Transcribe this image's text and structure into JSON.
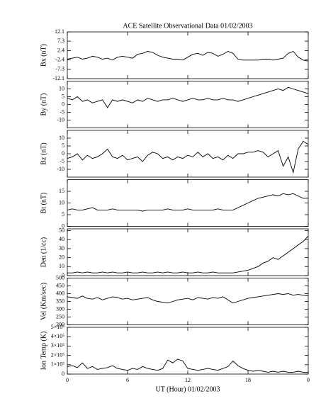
{
  "chart_data": [
    {
      "type": "line",
      "title": "ACE Satellite Observational Data   01/02/2003",
      "ylabel": "Bx (nT)",
      "color": "#000000",
      "x": [
        0,
        0.5,
        1,
        1.5,
        2,
        2.5,
        3,
        3.5,
        4,
        4.5,
        5,
        5.5,
        6,
        6.5,
        7,
        7.5,
        8,
        8.5,
        9,
        9.5,
        10,
        10.5,
        11,
        11.5,
        12,
        12.5,
        13,
        13.5,
        14,
        14.5,
        15,
        15.5,
        16,
        16.5,
        17,
        17.5,
        18,
        18.5,
        19,
        19.5,
        20,
        20.5,
        21,
        21.5,
        22,
        22.5,
        23,
        23.5,
        24
      ],
      "values": [
        -2,
        -1.5,
        -1,
        -2,
        -1.5,
        -0.5,
        -1,
        -2,
        -1.5,
        -2.5,
        -1,
        -0.5,
        -1,
        -1.5,
        0.5,
        1,
        2,
        1.5,
        0,
        -1,
        -1.5,
        -2,
        -2,
        -2.5,
        -1,
        0.5,
        1,
        0,
        1.5,
        1,
        -0.5,
        0.5,
        2,
        1,
        -2,
        -2.5,
        -2.5,
        -2.5,
        -2.5,
        -2,
        -2,
        -2.5,
        -2,
        -1.5,
        1,
        2,
        -1,
        -2.5,
        -3
      ],
      "ylim": [
        -12.1,
        12.1
      ],
      "yticks": [
        12.1,
        7.3,
        2.4,
        -2.4,
        -7.3,
        -12.1
      ]
    },
    {
      "type": "line",
      "ylabel": "By (nT)",
      "color": "#000000",
      "x": [
        0,
        0.5,
        1,
        1.5,
        2,
        2.5,
        3,
        3.5,
        4,
        4.5,
        5,
        5.5,
        6,
        6.5,
        7,
        7.5,
        8,
        8.5,
        9,
        9.5,
        10,
        10.5,
        11,
        11.5,
        12,
        12.5,
        13,
        13.5,
        14,
        14.5,
        15,
        15.5,
        16,
        16.5,
        17,
        17.5,
        18,
        18.5,
        19,
        19.5,
        20,
        20.5,
        21,
        21.5,
        22,
        22.5,
        23,
        23.5,
        24
      ],
      "values": [
        4,
        3,
        5,
        2,
        3,
        1,
        2,
        3,
        -2,
        3,
        2,
        3,
        2,
        1,
        3,
        2,
        4,
        3,
        2,
        3,
        3,
        4,
        3,
        2,
        3,
        4,
        3,
        3,
        4,
        3,
        3,
        4,
        3,
        3,
        2,
        3,
        4,
        5,
        6,
        7,
        8,
        9,
        10,
        9,
        11,
        10,
        9,
        8,
        7
      ],
      "ylim": [
        -15,
        15
      ],
      "yticks": [
        10,
        5,
        0,
        -5,
        -10
      ]
    },
    {
      "type": "line",
      "ylabel": "Bz (nT)",
      "color": "#000000",
      "x": [
        0,
        0.5,
        1,
        1.5,
        2,
        2.5,
        3,
        3.5,
        4,
        4.5,
        5,
        5.5,
        6,
        6.5,
        7,
        7.5,
        8,
        8.5,
        9,
        9.5,
        10,
        10.5,
        11,
        11.5,
        12,
        12.5,
        13,
        13.5,
        14,
        14.5,
        15,
        15.5,
        16,
        16.5,
        17,
        17.5,
        18,
        18.5,
        19,
        19.5,
        20,
        20.5,
        21,
        21.5,
        22,
        22.5,
        23,
        23.5,
        24
      ],
      "values": [
        -3,
        -2,
        0,
        -4,
        -1,
        -3,
        -2,
        0,
        3,
        -2,
        -3,
        -1,
        -4,
        -3,
        -2,
        -5,
        -1,
        1,
        0,
        -3,
        -2,
        -4,
        -2,
        -3,
        -1,
        -2,
        1,
        -2,
        0,
        -3,
        -2,
        -4,
        -1,
        -3,
        0,
        0,
        1,
        1,
        2,
        1,
        -2,
        0,
        2,
        -8,
        -2,
        -12,
        3,
        8,
        6
      ],
      "ylim": [
        -15,
        15
      ],
      "yticks": [
        10,
        5,
        0,
        -5,
        -10
      ]
    },
    {
      "type": "line",
      "ylabel": "Bt (nT)",
      "color": "#000000",
      "x": [
        0,
        0.5,
        1,
        1.5,
        2,
        2.5,
        3,
        3.5,
        4,
        4.5,
        5,
        5.5,
        6,
        6.5,
        7,
        7.5,
        8,
        8.5,
        9,
        9.5,
        10,
        10.5,
        11,
        11.5,
        12,
        12.5,
        13,
        13.5,
        14,
        14.5,
        15,
        15.5,
        16,
        16.5,
        17,
        17.5,
        18,
        18.5,
        19,
        19.5,
        20,
        20.5,
        21,
        21.5,
        22,
        22.5,
        23,
        23.5,
        24
      ],
      "values": [
        7,
        7.5,
        7,
        7,
        7.5,
        8,
        7,
        7,
        7,
        7.5,
        7,
        7,
        7,
        7,
        7,
        6.5,
        7,
        7,
        7,
        7,
        7.5,
        7,
        7,
        7,
        7.5,
        7,
        7,
        7,
        7,
        7,
        7.5,
        7,
        7,
        7,
        8,
        9,
        10,
        11,
        12,
        12.5,
        13,
        13.5,
        13,
        14,
        13.5,
        14,
        13,
        12,
        12
      ],
      "ylim": [
        0,
        20
      ],
      "yticks": [
        0,
        5,
        10,
        15
      ]
    },
    {
      "type": "line",
      "ylabel": "Den (1/cc)",
      "color": "#000000",
      "x": [
        0,
        0.5,
        1,
        1.5,
        2,
        2.5,
        3,
        3.5,
        4,
        4.5,
        5,
        5.5,
        6,
        6.5,
        7,
        7.5,
        8,
        8.5,
        9,
        9.5,
        10,
        10.5,
        11,
        11.5,
        12,
        12.5,
        13,
        13.5,
        14,
        14.5,
        15,
        15.5,
        16,
        16.5,
        17,
        17.5,
        18,
        18.5,
        19,
        19.5,
        20,
        20.5,
        21,
        21.5,
        22,
        22.5,
        23,
        23.5,
        24
      ],
      "values": [
        3,
        3,
        4,
        3,
        4,
        3,
        3,
        4,
        3,
        4,
        3,
        3,
        4,
        3,
        3,
        4,
        3,
        3,
        4,
        3,
        4,
        3,
        3,
        4,
        3,
        3,
        4,
        3,
        3,
        4,
        3,
        3,
        3,
        3,
        4,
        5,
        6,
        8,
        10,
        14,
        16,
        20,
        18,
        22,
        26,
        30,
        34,
        38,
        44
      ],
      "ylim": [
        0,
        52
      ],
      "yticks": [
        0,
        10,
        20,
        30,
        40,
        50
      ]
    },
    {
      "type": "line",
      "ylabel": "Vel (Km/sec)",
      "color": "#000000",
      "x": [
        0,
        0.5,
        1,
        1.5,
        2,
        2.5,
        3,
        3.5,
        4,
        4.5,
        5,
        5.5,
        6,
        6.5,
        7,
        7.5,
        8,
        8.5,
        9,
        9.5,
        10,
        10.5,
        11,
        11.5,
        12,
        12.5,
        13,
        13.5,
        14,
        14.5,
        15,
        15.5,
        16,
        16.5,
        17,
        17.5,
        18,
        18.5,
        19,
        19.5,
        20,
        20.5,
        21,
        21.5,
        22,
        22.5,
        23,
        23.5,
        24
      ],
      "values": [
        380,
        375,
        370,
        385,
        370,
        365,
        375,
        360,
        370,
        380,
        375,
        365,
        370,
        360,
        365,
        370,
        375,
        360,
        350,
        345,
        340,
        350,
        360,
        365,
        370,
        360,
        375,
        370,
        365,
        375,
        370,
        380,
        360,
        340,
        350,
        360,
        370,
        375,
        380,
        385,
        390,
        395,
        400,
        395,
        400,
        390,
        395,
        390,
        385
      ],
      "ylim": [
        200,
        500
      ],
      "yticks": [
        200,
        250,
        300,
        350,
        400,
        450,
        500
      ]
    },
    {
      "type": "line",
      "ylabel": "Ion Temp (K)",
      "xlabel": "UT (Hour)   01/02/2003",
      "color": "#000000",
      "x": [
        0,
        0.5,
        1,
        1.5,
        2,
        2.5,
        3,
        3.5,
        4,
        4.5,
        5,
        5.5,
        6,
        6.5,
        7,
        7.5,
        8,
        8.5,
        9,
        9.5,
        10,
        10.5,
        11,
        11.5,
        12,
        12.5,
        13,
        13.5,
        14,
        14.5,
        15,
        15.5,
        16,
        16.5,
        17,
        17.5,
        18,
        18.5,
        19,
        19.5,
        20,
        20.5,
        21,
        21.5,
        22,
        22.5,
        23,
        23.5,
        24
      ],
      "values": [
        80000,
        90000,
        70000,
        120000,
        60000,
        80000,
        50000,
        60000,
        70000,
        90000,
        60000,
        50000,
        40000,
        60000,
        50000,
        80000,
        60000,
        50000,
        40000,
        60000,
        150000,
        120000,
        160000,
        140000,
        60000,
        50000,
        40000,
        50000,
        60000,
        50000,
        40000,
        60000,
        80000,
        140000,
        90000,
        60000,
        40000,
        30000,
        40000,
        30000,
        20000,
        30000,
        20000,
        30000,
        20000,
        20000,
        30000,
        20000,
        20000
      ],
      "ylim": [
        0,
        500000
      ],
      "yticks": [
        0,
        {
          "value": 100000,
          "label": "1×10⁵"
        },
        {
          "value": 200000,
          "label": "2×10⁵"
        },
        {
          "value": 300000,
          "label": "3×10⁵"
        },
        {
          "value": 400000,
          "label": "4×10⁵"
        },
        {
          "value": 500000,
          "label": "5×10⁵"
        }
      ],
      "xlim": [
        0,
        24
      ],
      "xticks": [
        0,
        6,
        12,
        18,
        {
          "value": 24,
          "label": "0"
        }
      ]
    }
  ]
}
